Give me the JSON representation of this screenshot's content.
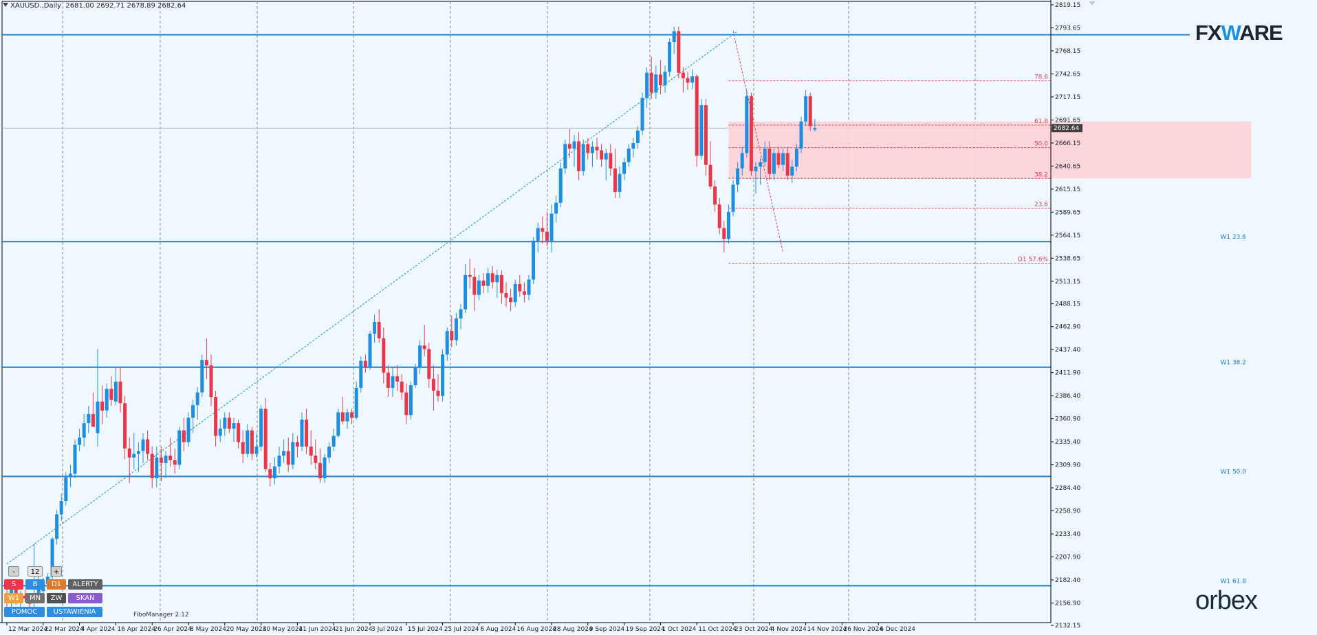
{
  "header": {
    "symbol_label": "XAUUSD.,Daily",
    "ohlc": "2681.00 2692.71 2678.89 2682.64"
  },
  "logos": {
    "fxware_pre": "FX",
    "fxware_v": "W",
    "fxware_post": "ARE",
    "orbex": "orbex"
  },
  "fibo_manager_label": "FiboManager 2.12",
  "panel": {
    "minus": "-",
    "period_value": "12",
    "plus": "+",
    "btn_s": "S",
    "btn_b": "B",
    "btn_d1": "D1",
    "btn_alerty": "ALERTY",
    "btn_w1": "W1",
    "btn_mn": "MN",
    "btn_zw": "ZW",
    "btn_skan": "SKAN",
    "btn_pomoc": "POMOC",
    "btn_ustawienia": "USTAWIENIA",
    "colors": {
      "s": "#e8364a",
      "b": "#2e8de0",
      "d1": "#e07a2a",
      "alerty": "#606060",
      "w1": "#f0a040",
      "mn": "#707070",
      "zw": "#505050",
      "skan": "#8a5ad0",
      "pomoc": "#2e8de0",
      "ustawienia": "#2e8de0"
    }
  },
  "colors": {
    "background": "#f0f8ff",
    "bull": "#1e8fe0",
    "bear": "#e8364a",
    "level_line": "#1e7fd0",
    "fib_red": "#e04050",
    "zone_fill": "#ffd0d6",
    "price_box": "#404040"
  },
  "chart_data": {
    "type": "candlestick",
    "symbol": "XAUUSD.",
    "timeframe": "Daily",
    "ylim": [
      2132.15,
      2819.15
    ],
    "y_ticks": [
      "2819.15",
      "2793.65",
      "2768.15",
      "2742.65",
      "2717.15",
      "2691.65",
      "2666.15",
      "2640.65",
      "2615.15",
      "2589.65",
      "2564.15",
      "2538.65",
      "2513.15",
      "2488.15",
      "2462.90",
      "2437.40",
      "2411.90",
      "2386.40",
      "2360.90",
      "2335.40",
      "2309.90",
      "2284.40",
      "2258.90",
      "2233.40",
      "2207.90",
      "2182.40",
      "2156.90",
      "2132.15"
    ],
    "x_labels": [
      "12 Mar 2024",
      "22 Mar 2024",
      "4 Apr 2024",
      "16 Apr 2024",
      "26 Apr 2024",
      "8 May 2024",
      "20 May 2024",
      "30 May 2024",
      "11 Jun 2024",
      "21 Jun 2024",
      "3 Jul 2024",
      "15 Jul 2024",
      "25 Jul 2024",
      "6 Aug 2024",
      "16 Aug 2024",
      "28 Aug 2024",
      "9 Sep 2024",
      "19 Sep 2024",
      "1 Oct 2024",
      "11 Oct 2024",
      "23 Oct 2024",
      "4 Nov 2024",
      "14 Nov 2024",
      "26 Nov 2024",
      "6 Dec 2024"
    ],
    "x_label_bar_index": [
      0,
      8,
      16,
      24,
      32,
      40,
      48,
      56,
      64,
      72,
      80,
      88,
      96,
      104,
      112,
      120,
      128,
      136,
      144,
      152,
      160,
      168,
      176,
      184,
      192
    ],
    "current_price": "2682.64",
    "horizontal_levels": [
      {
        "label": "",
        "price": 2786
      },
      {
        "label": "W1 23.6",
        "price": 2557
      },
      {
        "label": "W1 38.2",
        "price": 2418
      },
      {
        "label": "W1 50.0",
        "price": 2297
      },
      {
        "label": "W1 61.8",
        "price": 2176
      }
    ],
    "fib_levels": [
      {
        "label": "78.6",
        "price": 2735
      },
      {
        "label": "61.8",
        "price": 2686
      },
      {
        "label": "50.0",
        "price": 2661
      },
      {
        "label": "38.2",
        "price": 2627
      },
      {
        "label": "23.6",
        "price": 2594
      },
      {
        "label": "D1 57.6%",
        "price": 2533
      }
    ],
    "zone": {
      "top": 2690,
      "bottom": 2627
    },
    "trendline": {
      "from": {
        "bar": 0,
        "price": 2200
      },
      "to": {
        "bar": 161,
        "price": 2790
      }
    },
    "candles": [
      [
        2165,
        2178,
        2152,
        2160
      ],
      [
        2162,
        2180,
        2150,
        2172
      ],
      [
        2172,
        2176,
        2155,
        2158
      ],
      [
        2158,
        2170,
        2150,
        2165
      ],
      [
        2165,
        2172,
        2158,
        2162
      ],
      [
        2162,
        2168,
        2150,
        2156
      ],
      [
        2158,
        2222,
        2152,
        2164
      ],
      [
        2164,
        2190,
        2158,
        2182
      ],
      [
        2170,
        2185,
        2165,
        2175
      ],
      [
        2178,
        2190,
        2172,
        2186
      ],
      [
        2186,
        2230,
        2182,
        2228
      ],
      [
        2228,
        2260,
        2222,
        2255
      ],
      [
        2255,
        2278,
        2248,
        2270
      ],
      [
        2270,
        2302,
        2265,
        2296
      ],
      [
        2296,
        2310,
        2285,
        2300
      ],
      [
        2300,
        2338,
        2295,
        2332
      ],
      [
        2332,
        2350,
        2325,
        2340
      ],
      [
        2340,
        2366,
        2330,
        2356
      ],
      [
        2356,
        2375,
        2345,
        2366
      ],
      [
        2366,
        2390,
        2355,
        2352
      ],
      [
        2345,
        2438,
        2330,
        2380
      ],
      [
        2380,
        2398,
        2355,
        2370
      ],
      [
        2370,
        2400,
        2362,
        2394
      ],
      [
        2394,
        2408,
        2375,
        2382
      ],
      [
        2380,
        2418,
        2376,
        2402
      ],
      [
        2402,
        2418,
        2368,
        2378
      ],
      [
        2378,
        2386,
        2316,
        2328
      ],
      [
        2328,
        2340,
        2290,
        2318
      ],
      [
        2318,
        2345,
        2305,
        2322
      ],
      [
        2322,
        2335,
        2302,
        2325
      ],
      [
        2325,
        2345,
        2312,
        2338
      ],
      [
        2338,
        2348,
        2315,
        2322
      ],
      [
        2322,
        2330,
        2284,
        2295
      ],
      [
        2295,
        2330,
        2285,
        2318
      ],
      [
        2318,
        2330,
        2292,
        2312
      ],
      [
        2312,
        2325,
        2295,
        2320
      ],
      [
        2320,
        2340,
        2308,
        2315
      ],
      [
        2315,
        2328,
        2300,
        2310
      ],
      [
        2310,
        2352,
        2305,
        2348
      ],
      [
        2348,
        2362,
        2325,
        2335
      ],
      [
        2335,
        2368,
        2330,
        2362
      ],
      [
        2362,
        2382,
        2345,
        2376
      ],
      [
        2376,
        2396,
        2360,
        2390
      ],
      [
        2390,
        2432,
        2385,
        2426
      ],
      [
        2426,
        2450,
        2405,
        2420
      ],
      [
        2420,
        2432,
        2375,
        2385
      ],
      [
        2385,
        2392,
        2330,
        2342
      ],
      [
        2342,
        2360,
        2335,
        2350
      ],
      [
        2350,
        2368,
        2342,
        2362
      ],
      [
        2362,
        2368,
        2345,
        2350
      ],
      [
        2350,
        2362,
        2335,
        2356
      ],
      [
        2356,
        2360,
        2328,
        2335
      ],
      [
        2335,
        2348,
        2312,
        2322
      ],
      [
        2322,
        2355,
        2318,
        2348
      ],
      [
        2348,
        2352,
        2315,
        2322
      ],
      [
        2322,
        2345,
        2318,
        2330
      ],
      [
        2330,
        2376,
        2325,
        2372
      ],
      [
        2372,
        2384,
        2302,
        2305
      ],
      [
        2305,
        2312,
        2286,
        2295
      ],
      [
        2295,
        2318,
        2288,
        2308
      ],
      [
        2308,
        2330,
        2300,
        2320
      ],
      [
        2320,
        2338,
        2312,
        2325
      ],
      [
        2325,
        2340,
        2302,
        2310
      ],
      [
        2310,
        2345,
        2305,
        2335
      ],
      [
        2335,
        2342,
        2318,
        2330
      ],
      [
        2330,
        2368,
        2325,
        2360
      ],
      [
        2360,
        2372,
        2322,
        2330
      ],
      [
        2330,
        2348,
        2310,
        2320
      ],
      [
        2320,
        2338,
        2305,
        2312
      ],
      [
        2312,
        2328,
        2290,
        2295
      ],
      [
        2295,
        2322,
        2290,
        2318
      ],
      [
        2318,
        2335,
        2312,
        2330
      ],
      [
        2330,
        2350,
        2325,
        2342
      ],
      [
        2342,
        2372,
        2340,
        2368
      ],
      [
        2368,
        2385,
        2355,
        2358
      ],
      [
        2358,
        2372,
        2350,
        2368
      ],
      [
        2368,
        2372,
        2355,
        2362
      ],
      [
        2362,
        2402,
        2360,
        2395
      ],
      [
        2395,
        2430,
        2390,
        2425
      ],
      [
        2425,
        2432,
        2412,
        2418
      ],
      [
        2418,
        2458,
        2415,
        2455
      ],
      [
        2455,
        2476,
        2445,
        2468
      ],
      [
        2468,
        2482,
        2445,
        2450
      ],
      [
        2450,
        2462,
        2400,
        2412
      ],
      [
        2412,
        2420,
        2385,
        2395
      ],
      [
        2395,
        2418,
        2385,
        2408
      ],
      [
        2408,
        2420,
        2392,
        2402
      ],
      [
        2402,
        2410,
        2382,
        2390
      ],
      [
        2390,
        2400,
        2355,
        2365
      ],
      [
        2365,
        2402,
        2360,
        2398
      ],
      [
        2398,
        2422,
        2395,
        2418
      ],
      [
        2418,
        2448,
        2410,
        2442
      ],
      [
        2442,
        2465,
        2430,
        2438
      ],
      [
        2438,
        2445,
        2395,
        2405
      ],
      [
        2405,
        2420,
        2370,
        2392
      ],
      [
        2392,
        2410,
        2380,
        2386
      ],
      [
        2386,
        2438,
        2380,
        2432
      ],
      [
        2432,
        2462,
        2425,
        2458
      ],
      [
        2458,
        2475,
        2440,
        2448
      ],
      [
        2448,
        2478,
        2442,
        2472
      ],
      [
        2472,
        2488,
        2460,
        2482
      ],
      [
        2482,
        2532,
        2478,
        2520
      ],
      [
        2520,
        2538,
        2505,
        2518
      ],
      [
        2518,
        2528,
        2480,
        2498
      ],
      [
        2498,
        2520,
        2492,
        2514
      ],
      [
        2514,
        2522,
        2500,
        2508
      ],
      [
        2508,
        2528,
        2500,
        2522
      ],
      [
        2522,
        2530,
        2505,
        2512
      ],
      [
        2512,
        2526,
        2495,
        2520
      ],
      [
        2520,
        2525,
        2488,
        2500
      ],
      [
        2500,
        2512,
        2485,
        2495
      ],
      [
        2495,
        2505,
        2480,
        2490
      ],
      [
        2490,
        2515,
        2485,
        2510
      ],
      [
        2510,
        2520,
        2496,
        2502
      ],
      [
        2502,
        2512,
        2490,
        2498
      ],
      [
        2498,
        2520,
        2492,
        2515
      ],
      [
        2515,
        2562,
        2510,
        2558
      ],
      [
        2558,
        2578,
        2545,
        2572
      ],
      [
        2572,
        2585,
        2555,
        2568
      ],
      [
        2568,
        2590,
        2552,
        2558
      ],
      [
        2558,
        2598,
        2545,
        2588
      ],
      [
        2588,
        2608,
        2578,
        2600
      ],
      [
        2600,
        2645,
        2595,
        2638
      ],
      [
        2638,
        2670,
        2632,
        2665
      ],
      [
        2665,
        2682,
        2650,
        2660
      ],
      [
        2660,
        2675,
        2640,
        2668
      ],
      [
        2668,
        2678,
        2625,
        2635
      ],
      [
        2635,
        2670,
        2630,
        2665
      ],
      [
        2665,
        2672,
        2648,
        2655
      ],
      [
        2655,
        2668,
        2640,
        2662
      ],
      [
        2662,
        2672,
        2648,
        2658
      ],
      [
        2658,
        2665,
        2640,
        2648
      ],
      [
        2648,
        2660,
        2625,
        2655
      ],
      [
        2655,
        2665,
        2630,
        2638
      ],
      [
        2638,
        2660,
        2605,
        2612
      ],
      [
        2612,
        2640,
        2605,
        2632
      ],
      [
        2632,
        2650,
        2625,
        2645
      ],
      [
        2645,
        2665,
        2640,
        2660
      ],
      [
        2660,
        2672,
        2650,
        2666
      ],
      [
        2666,
        2685,
        2660,
        2680
      ],
      [
        2680,
        2722,
        2675,
        2716
      ],
      [
        2716,
        2750,
        2705,
        2744
      ],
      [
        2744,
        2762,
        2715,
        2722
      ],
      [
        2722,
        2752,
        2715,
        2742
      ],
      [
        2742,
        2758,
        2720,
        2730
      ],
      [
        2730,
        2752,
        2722,
        2745
      ],
      [
        2745,
        2782,
        2740,
        2778
      ],
      [
        2778,
        2795,
        2765,
        2790
      ],
      [
        2790,
        2795,
        2738,
        2744
      ],
      [
        2744,
        2750,
        2722,
        2738
      ],
      [
        2738,
        2745,
        2725,
        2733
      ],
      [
        2733,
        2748,
        2726,
        2740
      ],
      [
        2740,
        2742,
        2640,
        2652
      ],
      [
        2652,
        2715,
        2648,
        2708
      ],
      [
        2708,
        2715,
        2630,
        2642
      ],
      [
        2642,
        2668,
        2615,
        2618
      ],
      [
        2618,
        2625,
        2590,
        2598
      ],
      [
        2598,
        2605,
        2565,
        2572
      ],
      [
        2572,
        2580,
        2545,
        2560
      ],
      [
        2560,
        2598,
        2555,
        2590
      ],
      [
        2590,
        2625,
        2585,
        2620
      ],
      [
        2620,
        2645,
        2612,
        2638
      ],
      [
        2638,
        2662,
        2630,
        2655
      ],
      [
        2655,
        2725,
        2650,
        2718
      ],
      [
        2718,
        2722,
        2630,
        2635
      ],
      [
        2635,
        2645,
        2610,
        2640
      ],
      [
        2640,
        2650,
        2620,
        2645
      ],
      [
        2645,
        2668,
        2640,
        2660
      ],
      [
        2660,
        2668,
        2625,
        2632
      ],
      [
        2632,
        2660,
        2625,
        2655
      ],
      [
        2655,
        2662,
        2638,
        2642
      ],
      [
        2642,
        2660,
        2635,
        2655
      ],
      [
        2655,
        2662,
        2625,
        2630
      ],
      [
        2630,
        2648,
        2622,
        2640
      ],
      [
        2640,
        2665,
        2635,
        2660
      ],
      [
        2660,
        2695,
        2655,
        2690
      ],
      [
        2690,
        2725,
        2685,
        2718
      ],
      [
        2718,
        2722,
        2680,
        2685
      ],
      [
        2681,
        2692.71,
        2678.89,
        2682.64
      ]
    ]
  }
}
